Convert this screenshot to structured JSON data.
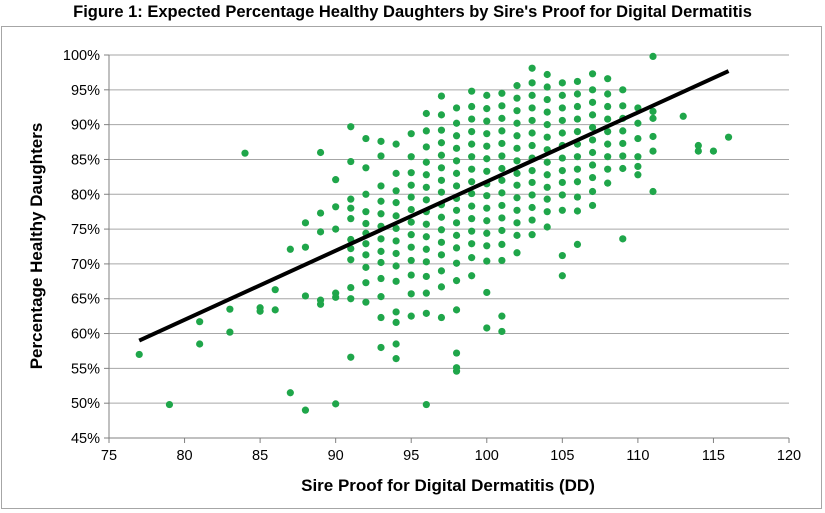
{
  "chart_data": {
    "type": "scatter",
    "title": "Figure 1: Expected Percentage Healthy Daughters by Sire's Proof for Digital Dermatitis",
    "xlabel": "Sire Proof for Digital Dermatitis (DD)",
    "ylabel": "Percentage Healthy Daughters",
    "xlim": [
      75,
      120
    ],
    "ylim": [
      45,
      100
    ],
    "x_ticks": [
      "75",
      "80",
      "85",
      "90",
      "95",
      "100",
      "105",
      "110",
      "115",
      "120"
    ],
    "y_ticks": [
      "45%",
      "50%",
      "55%",
      "60%",
      "65%",
      "70%",
      "75%",
      "80%",
      "85%",
      "90%",
      "95%",
      "100%"
    ],
    "grid": "horizontal",
    "legend": "none",
    "colors": {
      "points": "#1fa64a",
      "trendline": "#000000",
      "grid": "#a6a6a6"
    },
    "trendline": {
      "x": [
        77,
        116
      ],
      "y": [
        59.0,
        97.7
      ]
    },
    "series": [
      {
        "points": [
          [
            77,
            57.0
          ],
          [
            79,
            49.8
          ],
          [
            81,
            58.5
          ],
          [
            81,
            61.7
          ],
          [
            83,
            63.5
          ],
          [
            83,
            60.2
          ],
          [
            84,
            85.9
          ],
          [
            85,
            63.2
          ],
          [
            85,
            63.7
          ],
          [
            86,
            66.3
          ],
          [
            86,
            63.4
          ],
          [
            87,
            72.1
          ],
          [
            87,
            51.5
          ],
          [
            88,
            75.9
          ],
          [
            88,
            72.4
          ],
          [
            88,
            65.4
          ],
          [
            88,
            49.0
          ],
          [
            89,
            86.0
          ],
          [
            89,
            77.3
          ],
          [
            89,
            74.6
          ],
          [
            89,
            64.8
          ],
          [
            89,
            64.2
          ],
          [
            90,
            82.1
          ],
          [
            90,
            78.2
          ],
          [
            90,
            75.0
          ],
          [
            90,
            65.8
          ],
          [
            90,
            65.2
          ],
          [
            90,
            49.9
          ],
          [
            91,
            89.7
          ],
          [
            91,
            84.7
          ],
          [
            91,
            79.3
          ],
          [
            91,
            78.0
          ],
          [
            91,
            76.5
          ],
          [
            91,
            73.5
          ],
          [
            91,
            72.2
          ],
          [
            91,
            70.6
          ],
          [
            91,
            66.6
          ],
          [
            91,
            65.0
          ],
          [
            91,
            56.6
          ],
          [
            92,
            88.0
          ],
          [
            92,
            83.8
          ],
          [
            92,
            80.0
          ],
          [
            92,
            77.5
          ],
          [
            92,
            75.8
          ],
          [
            92,
            74.4
          ],
          [
            92,
            72.9
          ],
          [
            92,
            71.3
          ],
          [
            92,
            69.5
          ],
          [
            92,
            67.3
          ],
          [
            92,
            64.5
          ],
          [
            93,
            87.6
          ],
          [
            93,
            85.5
          ],
          [
            93,
            81.2
          ],
          [
            93,
            79.0
          ],
          [
            93,
            77.2
          ],
          [
            93,
            75.4
          ],
          [
            93,
            73.6
          ],
          [
            93,
            71.8
          ],
          [
            93,
            70.2
          ],
          [
            93,
            67.9
          ],
          [
            93,
            65.3
          ],
          [
            93,
            62.3
          ],
          [
            93,
            58.0
          ],
          [
            94,
            87.2
          ],
          [
            94,
            83.0
          ],
          [
            94,
            80.5
          ],
          [
            94,
            78.8
          ],
          [
            94,
            76.9
          ],
          [
            94,
            75.1
          ],
          [
            94,
            73.3
          ],
          [
            94,
            71.5
          ],
          [
            94,
            69.7
          ],
          [
            94,
            67.5
          ],
          [
            94,
            63.1
          ],
          [
            94,
            61.6
          ],
          [
            94,
            58.5
          ],
          [
            94,
            56.4
          ],
          [
            95,
            88.7
          ],
          [
            95,
            85.4
          ],
          [
            95,
            83.1
          ],
          [
            95,
            81.3
          ],
          [
            95,
            79.6
          ],
          [
            95,
            77.8
          ],
          [
            95,
            76.0
          ],
          [
            95,
            74.2
          ],
          [
            95,
            72.4
          ],
          [
            95,
            70.5
          ],
          [
            95,
            68.4
          ],
          [
            95,
            65.7
          ],
          [
            95,
            62.5
          ],
          [
            96,
            91.6
          ],
          [
            96,
            89.1
          ],
          [
            96,
            86.8
          ],
          [
            96,
            84.6
          ],
          [
            96,
            82.8
          ],
          [
            96,
            81.0
          ],
          [
            96,
            79.2
          ],
          [
            96,
            77.5
          ],
          [
            96,
            75.7
          ],
          [
            96,
            73.9
          ],
          [
            96,
            72.1
          ],
          [
            96,
            70.3
          ],
          [
            96,
            68.2
          ],
          [
            96,
            65.8
          ],
          [
            96,
            62.9
          ],
          [
            96,
            49.8
          ],
          [
            97,
            94.1
          ],
          [
            97,
            91.4
          ],
          [
            97,
            89.2
          ],
          [
            97,
            87.4
          ],
          [
            97,
            85.6
          ],
          [
            97,
            83.8
          ],
          [
            97,
            82.0
          ],
          [
            97,
            80.3
          ],
          [
            97,
            78.5
          ],
          [
            97,
            76.7
          ],
          [
            97,
            74.9
          ],
          [
            97,
            73.1
          ],
          [
            97,
            71.3
          ],
          [
            97,
            69.0
          ],
          [
            97,
            66.7
          ],
          [
            97,
            62.3
          ],
          [
            98,
            92.4
          ],
          [
            98,
            90.2
          ],
          [
            98,
            88.4
          ],
          [
            98,
            86.6
          ],
          [
            98,
            84.8
          ],
          [
            98,
            83.0
          ],
          [
            98,
            81.2
          ],
          [
            98,
            79.4
          ],
          [
            98,
            77.7
          ],
          [
            98,
            75.9
          ],
          [
            98,
            74.1
          ],
          [
            98,
            72.3
          ],
          [
            98,
            70.1
          ],
          [
            98,
            67.6
          ],
          [
            98,
            63.4
          ],
          [
            98,
            57.2
          ],
          [
            98,
            55.1
          ],
          [
            98,
            54.6
          ],
          [
            99,
            94.8
          ],
          [
            99,
            92.6
          ],
          [
            99,
            90.8
          ],
          [
            99,
            89.0
          ],
          [
            99,
            87.2
          ],
          [
            99,
            85.4
          ],
          [
            99,
            83.6
          ],
          [
            99,
            81.8
          ],
          [
            99,
            80.1
          ],
          [
            99,
            78.3
          ],
          [
            99,
            76.5
          ],
          [
            99,
            74.7
          ],
          [
            99,
            72.9
          ],
          [
            99,
            70.9
          ],
          [
            99,
            68.3
          ],
          [
            100,
            94.2
          ],
          [
            100,
            92.3
          ],
          [
            100,
            90.5
          ],
          [
            100,
            88.7
          ],
          [
            100,
            86.9
          ],
          [
            100,
            85.1
          ],
          [
            100,
            83.3
          ],
          [
            100,
            81.5
          ],
          [
            100,
            79.8
          ],
          [
            100,
            78.0
          ],
          [
            100,
            76.2
          ],
          [
            100,
            74.4
          ],
          [
            100,
            72.6
          ],
          [
            100,
            70.4
          ],
          [
            100,
            65.9
          ],
          [
            100,
            60.8
          ],
          [
            101,
            94.5
          ],
          [
            101,
            92.7
          ],
          [
            101,
            90.9
          ],
          [
            101,
            89.1
          ],
          [
            101,
            87.3
          ],
          [
            101,
            85.5
          ],
          [
            101,
            83.7
          ],
          [
            101,
            82.0
          ],
          [
            101,
            80.2
          ],
          [
            101,
            78.4
          ],
          [
            101,
            76.6
          ],
          [
            101,
            74.8
          ],
          [
            101,
            72.8
          ],
          [
            101,
            70.5
          ],
          [
            101,
            62.5
          ],
          [
            101,
            60.3
          ],
          [
            102,
            95.6
          ],
          [
            102,
            93.8
          ],
          [
            102,
            92.0
          ],
          [
            102,
            90.2
          ],
          [
            102,
            88.4
          ],
          [
            102,
            86.6
          ],
          [
            102,
            84.8
          ],
          [
            102,
            83.0
          ],
          [
            102,
            81.3
          ],
          [
            102,
            79.5
          ],
          [
            102,
            77.7
          ],
          [
            102,
            75.9
          ],
          [
            102,
            74.1
          ],
          [
            102,
            71.6
          ],
          [
            103,
            98.1
          ],
          [
            103,
            96.0
          ],
          [
            103,
            94.2
          ],
          [
            103,
            92.4
          ],
          [
            103,
            90.6
          ],
          [
            103,
            88.8
          ],
          [
            103,
            87.0
          ],
          [
            103,
            85.2
          ],
          [
            103,
            83.4
          ],
          [
            103,
            81.7
          ],
          [
            103,
            79.9
          ],
          [
            103,
            78.1
          ],
          [
            103,
            76.3
          ],
          [
            103,
            74.2
          ],
          [
            104,
            97.2
          ],
          [
            104,
            95.4
          ],
          [
            104,
            93.6
          ],
          [
            104,
            91.8
          ],
          [
            104,
            90.0
          ],
          [
            104,
            88.2
          ],
          [
            104,
            86.4
          ],
          [
            104,
            84.6
          ],
          [
            104,
            82.8
          ],
          [
            104,
            81.0
          ],
          [
            104,
            79.3
          ],
          [
            104,
            77.5
          ],
          [
            104,
            75.3
          ],
          [
            105,
            96.0
          ],
          [
            105,
            94.2
          ],
          [
            105,
            92.4
          ],
          [
            105,
            90.6
          ],
          [
            105,
            88.8
          ],
          [
            105,
            87.0
          ],
          [
            105,
            85.2
          ],
          [
            105,
            83.4
          ],
          [
            105,
            81.7
          ],
          [
            105,
            79.9
          ],
          [
            105,
            77.7
          ],
          [
            105,
            71.2
          ],
          [
            105,
            68.3
          ],
          [
            106,
            96.2
          ],
          [
            106,
            94.4
          ],
          [
            106,
            92.6
          ],
          [
            106,
            90.8
          ],
          [
            106,
            89.0
          ],
          [
            106,
            87.2
          ],
          [
            106,
            85.4
          ],
          [
            106,
            83.6
          ],
          [
            106,
            81.8
          ],
          [
            106,
            79.6
          ],
          [
            106,
            77.6
          ],
          [
            106,
            72.8
          ],
          [
            107,
            97.3
          ],
          [
            107,
            95.0
          ],
          [
            107,
            93.2
          ],
          [
            107,
            91.4
          ],
          [
            107,
            89.6
          ],
          [
            107,
            87.8
          ],
          [
            107,
            86.0
          ],
          [
            107,
            84.2
          ],
          [
            107,
            82.4
          ],
          [
            107,
            80.4
          ],
          [
            107,
            78.4
          ],
          [
            108,
            96.6
          ],
          [
            108,
            94.4
          ],
          [
            108,
            92.6
          ],
          [
            108,
            90.8
          ],
          [
            108,
            89.0
          ],
          [
            108,
            87.2
          ],
          [
            108,
            85.4
          ],
          [
            108,
            83.6
          ],
          [
            108,
            81.6
          ],
          [
            109,
            95.0
          ],
          [
            109,
            92.7
          ],
          [
            109,
            90.9
          ],
          [
            109,
            89.1
          ],
          [
            109,
            87.3
          ],
          [
            109,
            85.5
          ],
          [
            109,
            83.7
          ],
          [
            109,
            73.6
          ],
          [
            110,
            92.4
          ],
          [
            110,
            90.2
          ],
          [
            110,
            88.0
          ],
          [
            110,
            85.4
          ],
          [
            110,
            84.0
          ],
          [
            110,
            82.8
          ],
          [
            111,
            99.8
          ],
          [
            111,
            91.9
          ],
          [
            111,
            90.9
          ],
          [
            111,
            88.3
          ],
          [
            111,
            86.2
          ],
          [
            111,
            80.4
          ],
          [
            113,
            91.2
          ],
          [
            114,
            87.0
          ],
          [
            114,
            86.2
          ],
          [
            115,
            86.2
          ],
          [
            116,
            88.2
          ]
        ]
      }
    ]
  }
}
